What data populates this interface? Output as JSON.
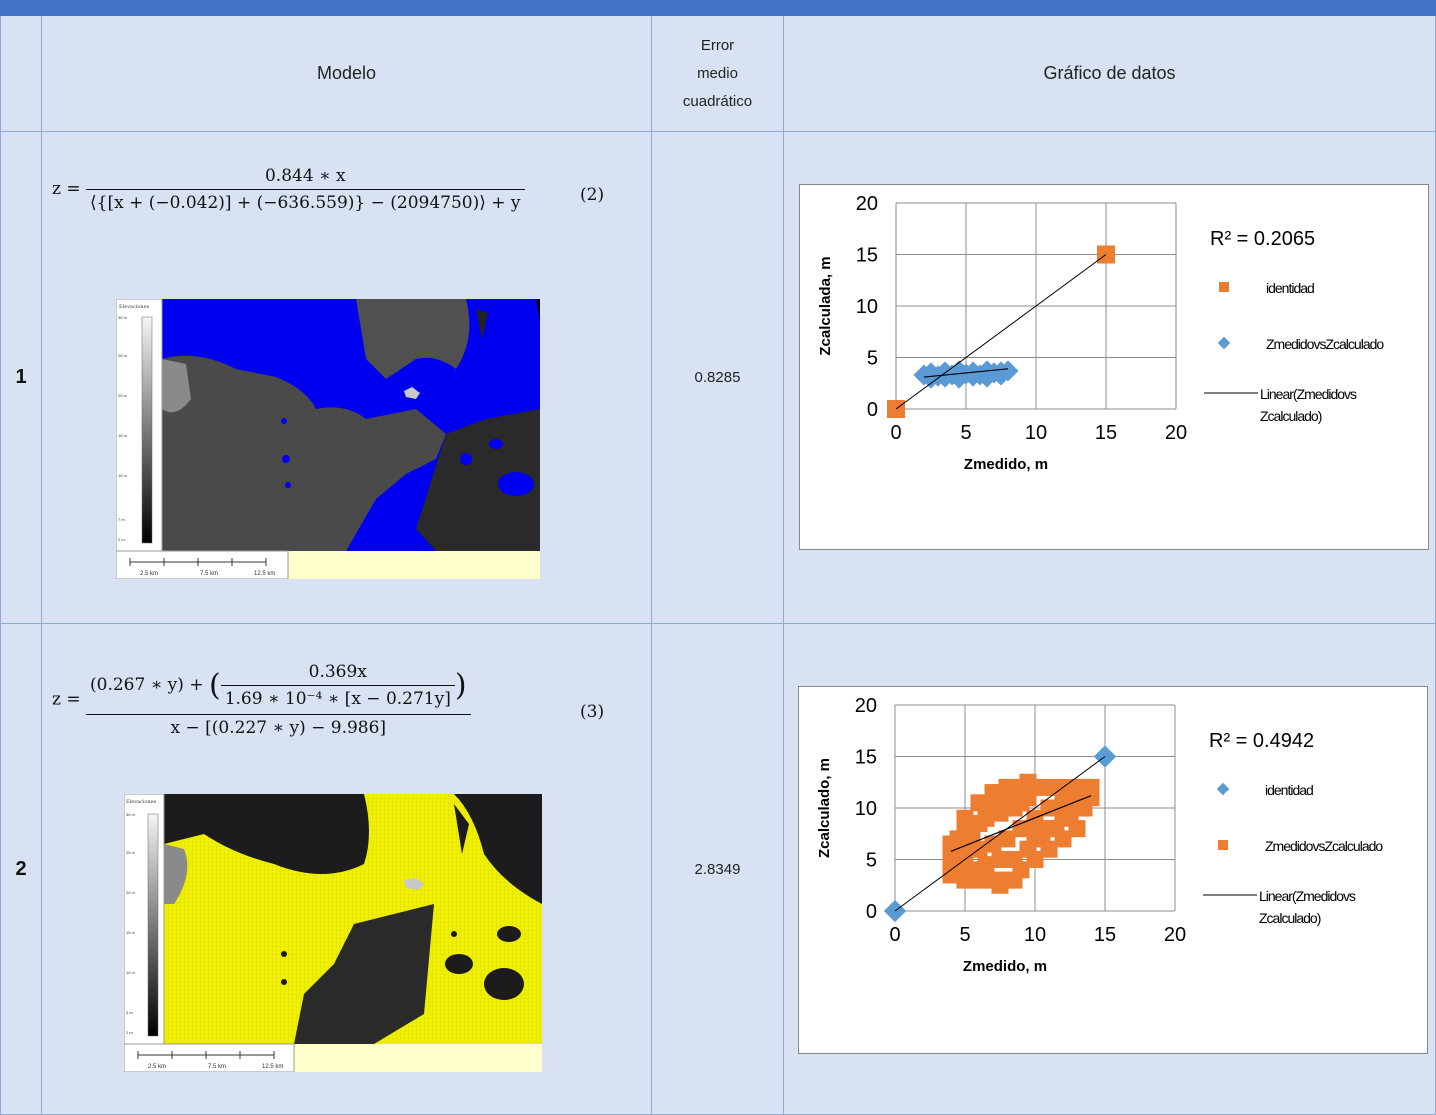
{
  "header": {
    "model": "Modelo",
    "error_line1": "Error",
    "error_line2": "medio",
    "error_line3": "cuadrático",
    "chart": "Gráfico de datos"
  },
  "rows": [
    {
      "number": "1",
      "formula": {
        "lhs": "z =",
        "numerator": "0.844 ∗ x",
        "denominator": "⟨{[x + (−0.042)] + (−636.559)} − (2094750)⟩ + y",
        "eq_no": "(2)"
      },
      "map": {
        "legend_title": "Elevaciones",
        "legend_ticks": [
          "30 m",
          "25 m",
          "20 m",
          "15 m",
          "10 m",
          "7 m",
          "2 m"
        ],
        "scale_labels": [
          "2.5 km",
          "7.5 km",
          "12.5 km"
        ],
        "fill_color": "#0000f0"
      },
      "error": "0.8285"
    },
    {
      "number": "2",
      "formula": {
        "lhs": "z =",
        "inner_term": "(0.267 ∗ y) +",
        "inner_numerator": "0.369x",
        "inner_denominator": "1.69 ∗ 10⁻⁴ ∗ [x − 0.271y]",
        "denominator": "x − [(0.227 ∗ y) − 9.986]",
        "eq_no": "(3)"
      },
      "map": {
        "legend_title": "Elevaciones",
        "legend_ticks": [
          "30 m",
          "25 m",
          "20 m",
          "15 m",
          "10 m",
          "5 m",
          "2 m"
        ],
        "scale_labels": [
          "2.5 km",
          "7.5 km",
          "12.5 km"
        ],
        "fill_color": "#f0f000"
      },
      "error": "2.8349"
    }
  ],
  "chart_data": [
    {
      "type": "scatter",
      "xlabel": "Zmedido, m",
      "ylabel": "Zcalculada, m",
      "xlim": [
        0,
        20
      ],
      "ylim": [
        0,
        20
      ],
      "x_ticks": [
        0,
        5,
        10,
        15,
        20
      ],
      "y_ticks": [
        0,
        5,
        10,
        15,
        20
      ],
      "grid": true,
      "legend_position": "right",
      "r_squared_label": "R² = 0.2065",
      "series": [
        {
          "name": "identidad",
          "marker": "square",
          "color": "#ed7d31",
          "x": [
            0,
            15
          ],
          "y": [
            0,
            15
          ]
        },
        {
          "name": "ZmedidovsZcalculado",
          "marker": "diamond",
          "color": "#5b9bd5",
          "x": [
            2,
            2.5,
            3,
            3.5,
            4,
            4.5,
            5,
            5.5,
            6,
            6.5,
            7,
            7.5,
            8,
            2.5,
            3.5,
            4.5,
            5.5,
            6.5,
            7.5
          ],
          "y": [
            3.3,
            3.5,
            3.2,
            3.6,
            3.3,
            3.7,
            3.4,
            3.6,
            3.3,
            3.7,
            3.5,
            3.6,
            3.7,
            3.0,
            3.1,
            3.0,
            3.2,
            3.1,
            3.3
          ]
        },
        {
          "name": "Linear(Zmedidovs Zcalculado)",
          "type": "trendline",
          "color": "#000000",
          "x": [
            2,
            8
          ],
          "y": [
            3.1,
            3.9
          ]
        }
      ],
      "legend_entries": [
        "identidad",
        "ZmedidovsZcalculado",
        "Linear(Zmedidovs",
        "Zcalculado)"
      ]
    },
    {
      "type": "scatter",
      "xlabel": "Zmedido, m",
      "ylabel": "Zcalculado, m",
      "xlim": [
        0,
        20
      ],
      "ylim": [
        0,
        20
      ],
      "x_ticks": [
        0,
        5,
        10,
        15,
        20
      ],
      "y_ticks": [
        0,
        5,
        10,
        15,
        20
      ],
      "grid": true,
      "legend_position": "right",
      "r_squared_label": "R² = 0.4942",
      "series": [
        {
          "name": "identidad",
          "marker": "diamond",
          "color": "#5b9bd5",
          "x": [
            0,
            15
          ],
          "y": [
            0,
            15
          ]
        },
        {
          "name": "ZmedidovsZcalculado",
          "marker": "square",
          "color": "#ed7d31",
          "x": [
            4,
            4,
            4,
            4.5,
            4.5,
            5,
            5,
            5,
            5.5,
            5.5,
            6,
            6,
            6,
            6.5,
            6.5,
            7,
            7,
            7,
            7.5,
            7.5,
            8,
            8,
            8,
            8.5,
            8.5,
            9,
            9,
            9,
            9.5,
            9.5,
            10,
            10,
            10.5,
            10.5,
            11,
            11,
            11.5,
            11.5,
            12,
            12,
            12.5,
            12.5,
            13,
            13,
            13.5,
            13.5,
            14,
            14,
            6,
            7,
            8,
            9,
            10,
            11,
            12,
            13,
            5,
            7.5,
            8.5,
            9.5
          ],
          "y": [
            3.5,
            5,
            6.5,
            4,
            7,
            3,
            5.5,
            8,
            4,
            7,
            3,
            6,
            8.5,
            4.5,
            9,
            3,
            6.5,
            10,
            5,
            9.5,
            3,
            7,
            11,
            5,
            10,
            4,
            8,
            12,
            6,
            11,
            5,
            9,
            7,
            12,
            6,
            10,
            8,
            12,
            7,
            11,
            9,
            12,
            8,
            11.5,
            10,
            12,
            11,
            12,
            10.5,
            11.5,
            12,
            10.5,
            7.5,
            8,
            9.5,
            10,
            9,
            2.5,
            3,
            12.5
          ],
          "note": "dense cloud of overlapping points"
        },
        {
          "name": "Linear(Zmedidovs Zcalculado)",
          "type": "trendline",
          "color": "#000000",
          "x": [
            4,
            14
          ],
          "y": [
            5.8,
            11.2
          ]
        }
      ],
      "legend_entries": [
        "identidad",
        "ZmedidovsZcalculado",
        "Linear(Zmedidovs",
        "Zcalculado)"
      ]
    }
  ]
}
